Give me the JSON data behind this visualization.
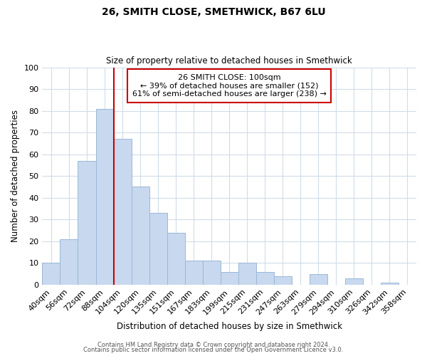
{
  "title": "26, SMITH CLOSE, SMETHWICK, B67 6LU",
  "subtitle": "Size of property relative to detached houses in Smethwick",
  "xlabel": "Distribution of detached houses by size in Smethwick",
  "ylabel": "Number of detached properties",
  "bar_labels": [
    "40sqm",
    "56sqm",
    "72sqm",
    "88sqm",
    "104sqm",
    "120sqm",
    "135sqm",
    "151sqm",
    "167sqm",
    "183sqm",
    "199sqm",
    "215sqm",
    "231sqm",
    "247sqm",
    "263sqm",
    "279sqm",
    "294sqm",
    "310sqm",
    "326sqm",
    "342sqm",
    "358sqm"
  ],
  "bar_values": [
    10,
    21,
    57,
    81,
    67,
    45,
    33,
    24,
    11,
    11,
    6,
    10,
    6,
    4,
    0,
    5,
    0,
    3,
    0,
    1,
    0
  ],
  "bar_color": "#c8d8ee",
  "bar_edge_color": "#9ab8d8",
  "grid_color": "#d0dce8",
  "vline_color": "#cc0000",
  "annotation_title": "26 SMITH CLOSE: 100sqm",
  "annotation_line1": "← 39% of detached houses are smaller (152)",
  "annotation_line2": "61% of semi-detached houses are larger (238) →",
  "annotation_box_color": "#ffffff",
  "annotation_box_edge": "#cc0000",
  "ylim": [
    0,
    100
  ],
  "footer1": "Contains HM Land Registry data © Crown copyright and database right 2024.",
  "footer2": "Contains public sector information licensed under the Open Government Licence v3.0."
}
